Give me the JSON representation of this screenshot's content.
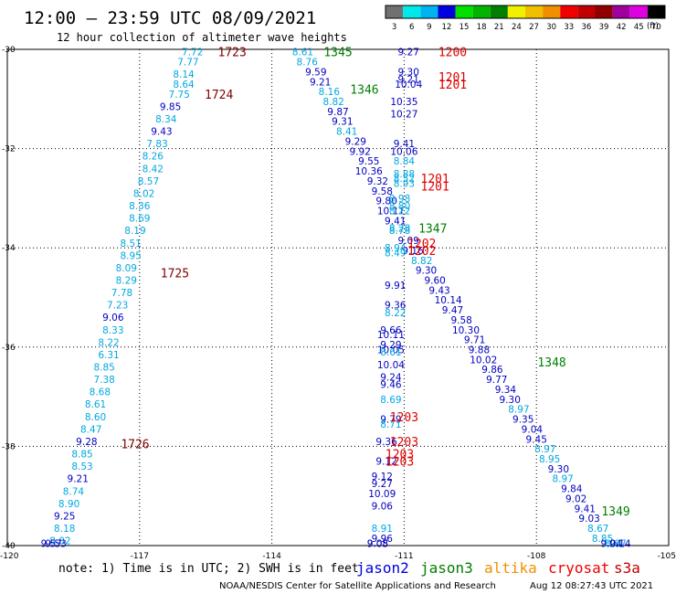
{
  "header": {
    "title": "12:00 – 23:59 UTC 08/09/2021",
    "subtitle": "12 hour collection of altimeter wave heights",
    "units": "(ft)"
  },
  "colorbar": {
    "ticks": [
      "3",
      "6",
      "9",
      "12",
      "15",
      "18",
      "21",
      "24",
      "27",
      "30",
      "33",
      "36",
      "39",
      "42",
      "45",
      "70"
    ],
    "colors": [
      "#707070",
      "#00e8e8",
      "#00b4f0",
      "#0000e0",
      "#00e000",
      "#00b400",
      "#008000",
      "#f0f000",
      "#f0c000",
      "#f09000",
      "#f00000",
      "#c00000",
      "#900000",
      "#a000a0",
      "#e000e0",
      "#000000"
    ]
  },
  "footer": {
    "note": "note:  1) Time is in UTC; 2) SWH is in feet",
    "credit": "NOAA/NESDIS Center for Satellite Applications and Research",
    "timestamp": "Aug 12 08:27:43 UTC 2021"
  },
  "legend": [
    {
      "name": "jason2",
      "color": "#0000e0"
    },
    {
      "name": "jason3",
      "color": "#008000"
    },
    {
      "name": "altika",
      "color": "#f09000"
    },
    {
      "name": "cryosat",
      "color": "#f00000"
    },
    {
      "name": "s3a",
      "color": "#c00000"
    }
  ],
  "chart_data": {
    "type": "scatter",
    "xlim": [
      -120,
      -105
    ],
    "ylim": [
      -40,
      -30
    ],
    "x_ticks": [
      "-120",
      "-117",
      "-114",
      "-111",
      "-108",
      "-105"
    ],
    "y_ticks": [
      "-30",
      "-32",
      "-34",
      "-36",
      "-38",
      "-40"
    ],
    "value_colors": {
      "light": "#00a8e0",
      "dark": "#0000c0"
    },
    "pass_labels": [
      {
        "text": "1723",
        "x": -114.9,
        "y": -30.05,
        "color": "#800000"
      },
      {
        "text": "1724",
        "x": -115.2,
        "y": -30.9,
        "color": "#800000"
      },
      {
        "text": "1725",
        "x": -116.2,
        "y": -34.5,
        "color": "#800000"
      },
      {
        "text": "1726",
        "x": -117.1,
        "y": -37.95,
        "color": "#800000"
      },
      {
        "text": "1345",
        "x": -112.5,
        "y": -30.05,
        "color": "#008000"
      },
      {
        "text": "1346",
        "x": -111.9,
        "y": -30.8,
        "color": "#008000"
      },
      {
        "text": "1347",
        "x": -110.35,
        "y": -33.6,
        "color": "#008000"
      },
      {
        "text": "1348",
        "x": -107.65,
        "y": -36.3,
        "color": "#008000"
      },
      {
        "text": "1349",
        "x": -106.2,
        "y": -39.3,
        "color": "#008000"
      },
      {
        "text": "1200",
        "x": -109.9,
        "y": -30.05,
        "color": "#e00000"
      },
      {
        "text": "1201",
        "x": -109.9,
        "y": -30.55,
        "color": "#e00000"
      },
      {
        "text": "1201",
        "x": -109.9,
        "y": -30.7,
        "color": "#e00000"
      },
      {
        "text": "1201",
        "x": -110.3,
        "y": -32.6,
        "color": "#e00000"
      },
      {
        "text": "1201",
        "x": -110.3,
        "y": -32.75,
        "color": "#e00000"
      },
      {
        "text": "1202",
        "x": -110.6,
        "y": -33.9,
        "color": "#e00000"
      },
      {
        "text": "1202",
        "x": -110.6,
        "y": -34.05,
        "color": "#e00000"
      },
      {
        "text": "1203",
        "x": -111.0,
        "y": -37.4,
        "color": "#e00000"
      },
      {
        "text": "1203",
        "x": -111.0,
        "y": -37.9,
        "color": "#e00000"
      },
      {
        "text": "1203",
        "x": -111.1,
        "y": -38.15,
        "color": "#e00000"
      },
      {
        "text": "1203",
        "x": -111.1,
        "y": -38.3,
        "color": "#e00000"
      }
    ],
    "points": [
      {
        "x": -115.8,
        "y": -30.05,
        "v": "7.72",
        "c": "light"
      },
      {
        "x": -115.9,
        "y": -30.25,
        "v": "7.77",
        "c": "light"
      },
      {
        "x": -116.0,
        "y": -30.5,
        "v": "8.14",
        "c": "light"
      },
      {
        "x": -116.0,
        "y": -30.7,
        "v": "8.64",
        "c": "light"
      },
      {
        "x": -116.1,
        "y": -30.9,
        "v": "7.75",
        "c": "light"
      },
      {
        "x": -116.3,
        "y": -31.15,
        "v": "9.85",
        "c": "dark"
      },
      {
        "x": -116.4,
        "y": -31.4,
        "v": "8.34",
        "c": "light"
      },
      {
        "x": -116.5,
        "y": -31.65,
        "v": "9.43",
        "c": "dark"
      },
      {
        "x": -116.6,
        "y": -31.9,
        "v": "7.83",
        "c": "light"
      },
      {
        "x": -116.7,
        "y": -32.15,
        "v": "8.26",
        "c": "light"
      },
      {
        "x": -116.7,
        "y": -32.4,
        "v": "8.42",
        "c": "light"
      },
      {
        "x": -116.8,
        "y": -32.65,
        "v": "8.57",
        "c": "light"
      },
      {
        "x": -116.9,
        "y": -32.9,
        "v": "8.02",
        "c": "light"
      },
      {
        "x": -117.0,
        "y": -33.15,
        "v": "8.36",
        "c": "light"
      },
      {
        "x": -117.0,
        "y": -33.4,
        "v": "8.69",
        "c": "light"
      },
      {
        "x": -117.1,
        "y": -33.65,
        "v": "8.19",
        "c": "light"
      },
      {
        "x": -117.2,
        "y": -33.9,
        "v": "8.51",
        "c": "light"
      },
      {
        "x": -117.2,
        "y": -34.15,
        "v": "8.95",
        "c": "light"
      },
      {
        "x": -117.3,
        "y": -34.4,
        "v": "8.09",
        "c": "light"
      },
      {
        "x": -117.3,
        "y": -34.65,
        "v": "8.29",
        "c": "light"
      },
      {
        "x": -117.4,
        "y": -34.9,
        "v": "7.78",
        "c": "light"
      },
      {
        "x": -117.5,
        "y": -35.15,
        "v": "7.23",
        "c": "light"
      },
      {
        "x": -117.6,
        "y": -35.4,
        "v": "9.06",
        "c": "dark"
      },
      {
        "x": -117.6,
        "y": -35.65,
        "v": "8.33",
        "c": "light"
      },
      {
        "x": -117.7,
        "y": -35.9,
        "v": "8.22",
        "c": "light"
      },
      {
        "x": -117.7,
        "y": -36.15,
        "v": "6.31",
        "c": "light"
      },
      {
        "x": -117.8,
        "y": -36.4,
        "v": "8.85",
        "c": "light"
      },
      {
        "x": -117.8,
        "y": -36.65,
        "v": "7.38",
        "c": "light"
      },
      {
        "x": -117.9,
        "y": -36.9,
        "v": "8.68",
        "c": "light"
      },
      {
        "x": -118.0,
        "y": -37.15,
        "v": "8.61",
        "c": "light"
      },
      {
        "x": -118.0,
        "y": -37.4,
        "v": "8.60",
        "c": "light"
      },
      {
        "x": -118.1,
        "y": -37.65,
        "v": "8.47",
        "c": "light"
      },
      {
        "x": -118.2,
        "y": -37.9,
        "v": "9.28",
        "c": "dark"
      },
      {
        "x": -118.3,
        "y": -38.15,
        "v": "8.85",
        "c": "light"
      },
      {
        "x": -118.3,
        "y": -38.4,
        "v": "8.53",
        "c": "light"
      },
      {
        "x": -118.4,
        "y": -38.65,
        "v": "9.21",
        "c": "dark"
      },
      {
        "x": -118.5,
        "y": -38.9,
        "v": "8.74",
        "c": "light"
      },
      {
        "x": -118.6,
        "y": -39.15,
        "v": "8.90",
        "c": "light"
      },
      {
        "x": -118.7,
        "y": -39.4,
        "v": "9.25",
        "c": "dark"
      },
      {
        "x": -118.7,
        "y": -39.65,
        "v": "8.18",
        "c": "light"
      },
      {
        "x": -118.8,
        "y": -39.9,
        "v": "8.02",
        "c": "light"
      },
      {
        "x": -118.9,
        "y": -40.15,
        "v": "9.53",
        "c": "dark"
      },
      {
        "x": -119.0,
        "y": -40.4,
        "v": "9.57",
        "c": "dark"
      },
      {
        "x": -113.3,
        "y": -30.05,
        "v": "8.61",
        "c": "light"
      },
      {
        "x": -113.2,
        "y": -30.25,
        "v": "8.76",
        "c": "light"
      },
      {
        "x": -113.0,
        "y": -30.45,
        "v": "9.59",
        "c": "dark"
      },
      {
        "x": -112.9,
        "y": -30.65,
        "v": "9.21",
        "c": "dark"
      },
      {
        "x": -112.7,
        "y": -30.85,
        "v": "8.16",
        "c": "light"
      },
      {
        "x": -112.6,
        "y": -31.05,
        "v": "8.82",
        "c": "light"
      },
      {
        "x": -112.5,
        "y": -31.25,
        "v": "9.87",
        "c": "dark"
      },
      {
        "x": -112.4,
        "y": -31.45,
        "v": "9.31",
        "c": "dark"
      },
      {
        "x": -112.3,
        "y": -31.65,
        "v": "8.41",
        "c": "light"
      },
      {
        "x": -112.1,
        "y": -31.85,
        "v": "9.29",
        "c": "dark"
      },
      {
        "x": -112.0,
        "y": -32.05,
        "v": "9.92",
        "c": "dark"
      },
      {
        "x": -111.8,
        "y": -32.25,
        "v": "9.55",
        "c": "dark"
      },
      {
        "x": -111.8,
        "y": -32.45,
        "v": "10.36",
        "c": "dark"
      },
      {
        "x": -111.6,
        "y": -32.65,
        "v": "9.32",
        "c": "dark"
      },
      {
        "x": -111.5,
        "y": -32.85,
        "v": "9.58",
        "c": "dark"
      },
      {
        "x": -111.4,
        "y": -33.05,
        "v": "9.80",
        "c": "dark"
      },
      {
        "x": -111.3,
        "y": -33.25,
        "v": "10.11",
        "c": "dark"
      },
      {
        "x": -111.2,
        "y": -33.45,
        "v": "9.41",
        "c": "dark"
      },
      {
        "x": -111.1,
        "y": -33.65,
        "v": "8.78",
        "c": "light"
      },
      {
        "x": -110.9,
        "y": -33.85,
        "v": "9.09",
        "c": "dark"
      },
      {
        "x": -110.8,
        "y": -34.05,
        "v": "9.16",
        "c": "dark"
      },
      {
        "x": -110.6,
        "y": -34.25,
        "v": "8.82",
        "c": "light"
      },
      {
        "x": -110.5,
        "y": -34.45,
        "v": "9.30",
        "c": "dark"
      },
      {
        "x": -110.3,
        "y": -34.65,
        "v": "9.60",
        "c": "dark"
      },
      {
        "x": -110.2,
        "y": -34.85,
        "v": "9.43",
        "c": "dark"
      },
      {
        "x": -110.0,
        "y": -35.05,
        "v": "10.14",
        "c": "dark"
      },
      {
        "x": -109.9,
        "y": -35.25,
        "v": "9.47",
        "c": "dark"
      },
      {
        "x": -109.7,
        "y": -35.45,
        "v": "9.58",
        "c": "dark"
      },
      {
        "x": -109.6,
        "y": -35.65,
        "v": "10.30",
        "c": "dark"
      },
      {
        "x": -109.4,
        "y": -35.85,
        "v": "9.71",
        "c": "dark"
      },
      {
        "x": -109.3,
        "y": -36.05,
        "v": "9.88",
        "c": "dark"
      },
      {
        "x": -109.2,
        "y": -36.25,
        "v": "10.02",
        "c": "dark"
      },
      {
        "x": -109.0,
        "y": -36.45,
        "v": "9.86",
        "c": "dark"
      },
      {
        "x": -108.9,
        "y": -36.65,
        "v": "9.77",
        "c": "dark"
      },
      {
        "x": -108.7,
        "y": -36.85,
        "v": "9.34",
        "c": "dark"
      },
      {
        "x": -108.6,
        "y": -37.05,
        "v": "9.30",
        "c": "dark"
      },
      {
        "x": -108.4,
        "y": -37.25,
        "v": "8.97",
        "c": "light"
      },
      {
        "x": -108.3,
        "y": -37.45,
        "v": "9.35",
        "c": "dark"
      },
      {
        "x": -108.1,
        "y": -37.65,
        "v": "9.04",
        "c": "dark"
      },
      {
        "x": -108.0,
        "y": -37.85,
        "v": "9.45",
        "c": "dark"
      },
      {
        "x": -107.8,
        "y": -38.05,
        "v": "8.97",
        "c": "light"
      },
      {
        "x": -107.7,
        "y": -38.25,
        "v": "8.95",
        "c": "light"
      },
      {
        "x": -107.5,
        "y": -38.45,
        "v": "9.30",
        "c": "dark"
      },
      {
        "x": -107.4,
        "y": -38.65,
        "v": "8.97",
        "c": "light"
      },
      {
        "x": -107.2,
        "y": -38.85,
        "v": "9.84",
        "c": "dark"
      },
      {
        "x": -107.1,
        "y": -39.05,
        "v": "9.02",
        "c": "dark"
      },
      {
        "x": -106.9,
        "y": -39.25,
        "v": "9.41",
        "c": "dark"
      },
      {
        "x": -106.8,
        "y": -39.45,
        "v": "9.03",
        "c": "dark"
      },
      {
        "x": -106.6,
        "y": -39.65,
        "v": "8.67",
        "c": "light"
      },
      {
        "x": -106.5,
        "y": -39.85,
        "v": "8.85",
        "c": "light"
      },
      {
        "x": -106.3,
        "y": -40.05,
        "v": "9.04",
        "c": "dark"
      },
      {
        "x": -106.2,
        "y": -40.25,
        "v": "8.87",
        "c": "light"
      },
      {
        "x": -106.1,
        "y": -40.45,
        "v": "9.14",
        "c": "dark"
      },
      {
        "x": -110.9,
        "y": -30.05,
        "v": "9.27",
        "c": "dark"
      },
      {
        "x": -110.9,
        "y": -30.45,
        "v": "9.30",
        "c": "dark"
      },
      {
        "x": -110.9,
        "y": -30.6,
        "v": "9.21",
        "c": "dark"
      },
      {
        "x": -110.9,
        "y": -30.7,
        "v": "10.04",
        "c": "dark"
      },
      {
        "x": -111.0,
        "y": -31.05,
        "v": "10.35",
        "c": "dark"
      },
      {
        "x": -111.0,
        "y": -31.3,
        "v": "10.27",
        "c": "dark"
      },
      {
        "x": -111.0,
        "y": -31.9,
        "v": "9.41",
        "c": "dark"
      },
      {
        "x": -111.0,
        "y": -32.05,
        "v": "10.06",
        "c": "dark"
      },
      {
        "x": -111.0,
        "y": -32.25,
        "v": "8.84",
        "c": "light"
      },
      {
        "x": -111.0,
        "y": -32.5,
        "v": "8.88",
        "c": "light"
      },
      {
        "x": -111.0,
        "y": -32.6,
        "v": "8.52",
        "c": "light"
      },
      {
        "x": -111.0,
        "y": -32.7,
        "v": "8.93",
        "c": "light"
      },
      {
        "x": -111.1,
        "y": -33.0,
        "v": "8.98",
        "c": "light"
      },
      {
        "x": -111.1,
        "y": -33.15,
        "v": "8.80",
        "c": "light"
      },
      {
        "x": -111.1,
        "y": -33.25,
        "v": "8.22",
        "c": "light"
      },
      {
        "x": -111.1,
        "y": -33.6,
        "v": "8.28",
        "c": "light"
      },
      {
        "x": -111.2,
        "y": -34.0,
        "v": "8.94",
        "c": "light"
      },
      {
        "x": -111.2,
        "y": -34.1,
        "v": "8.49",
        "c": "light"
      },
      {
        "x": -111.2,
        "y": -34.75,
        "v": "9.91",
        "c": "dark"
      },
      {
        "x": -111.2,
        "y": -35.15,
        "v": "9.36",
        "c": "dark"
      },
      {
        "x": -111.2,
        "y": -35.3,
        "v": "8.22",
        "c": "light"
      },
      {
        "x": -111.3,
        "y": -35.65,
        "v": "9.66",
        "c": "dark"
      },
      {
        "x": -111.3,
        "y": -35.75,
        "v": "10.11",
        "c": "dark"
      },
      {
        "x": -111.3,
        "y": -35.95,
        "v": "9.29",
        "c": "dark"
      },
      {
        "x": -111.3,
        "y": -36.05,
        "v": "10.05",
        "c": "dark"
      },
      {
        "x": -111.3,
        "y": -36.1,
        "v": "8.61",
        "c": "light"
      },
      {
        "x": -111.3,
        "y": -36.35,
        "v": "10.04",
        "c": "dark"
      },
      {
        "x": -111.3,
        "y": -36.6,
        "v": "9.24",
        "c": "dark"
      },
      {
        "x": -111.3,
        "y": -36.75,
        "v": "9.46",
        "c": "dark"
      },
      {
        "x": -111.3,
        "y": -37.05,
        "v": "8.69",
        "c": "light"
      },
      {
        "x": -111.3,
        "y": -37.45,
        "v": "9.79",
        "c": "dark"
      },
      {
        "x": -111.3,
        "y": -37.55,
        "v": "8.71",
        "c": "light"
      },
      {
        "x": -111.4,
        "y": -37.9,
        "v": "9.36",
        "c": "dark"
      },
      {
        "x": -111.4,
        "y": -38.3,
        "v": "9.12",
        "c": "dark"
      },
      {
        "x": -111.5,
        "y": -38.6,
        "v": "9.12",
        "c": "dark"
      },
      {
        "x": -111.5,
        "y": -38.75,
        "v": "9.27",
        "c": "dark"
      },
      {
        "x": -111.5,
        "y": -38.95,
        "v": "10.09",
        "c": "dark"
      },
      {
        "x": -111.5,
        "y": -39.2,
        "v": "9.06",
        "c": "dark"
      },
      {
        "x": -111.5,
        "y": -39.65,
        "v": "8.91",
        "c": "light"
      },
      {
        "x": -111.5,
        "y": -39.85,
        "v": "9.96",
        "c": "dark"
      },
      {
        "x": -111.6,
        "y": -40.1,
        "v": "9.08",
        "c": "dark"
      },
      {
        "x": -111.6,
        "y": -40.45,
        "v": "9.05",
        "c": "dark"
      }
    ]
  }
}
